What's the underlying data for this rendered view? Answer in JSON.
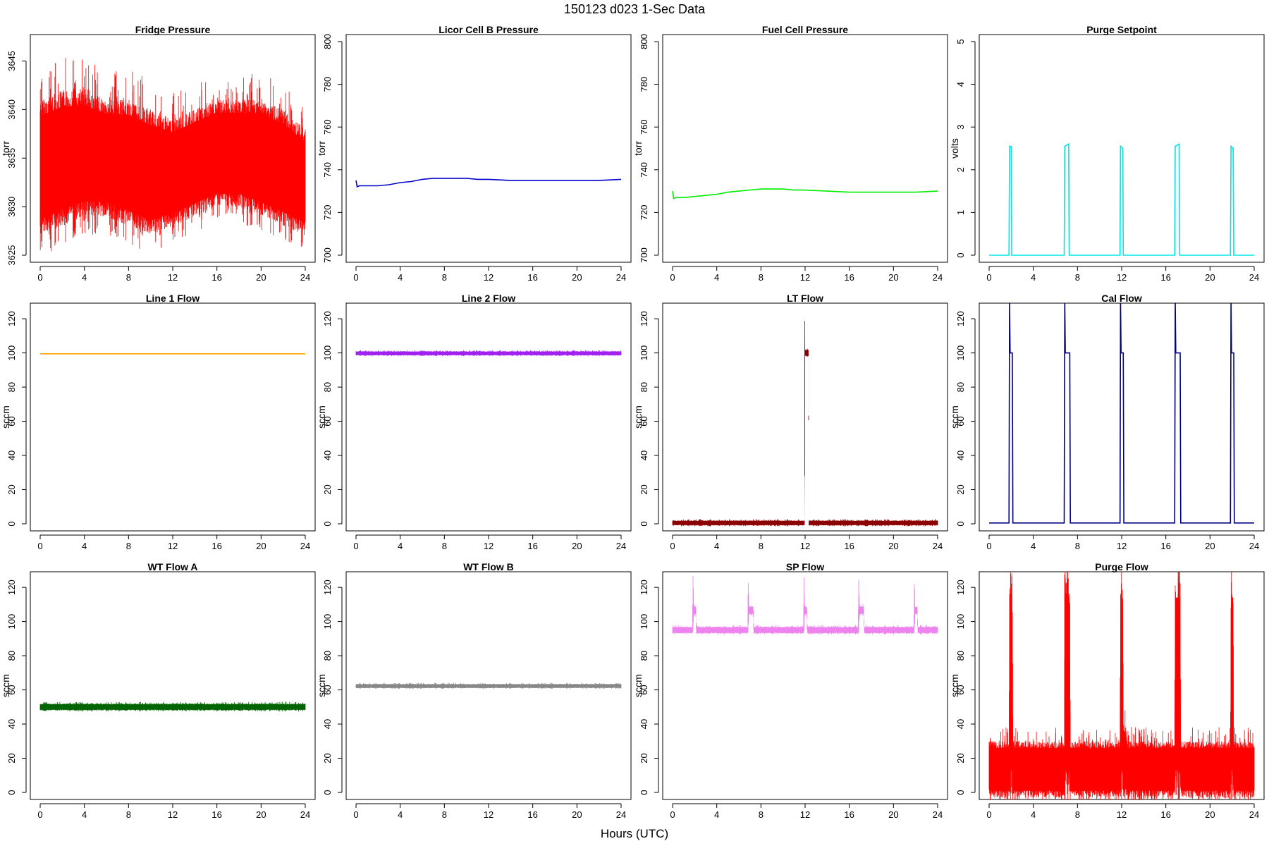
{
  "figure": {
    "title": "150123   d023   1-Sec Data",
    "xlabel": "Hours (UTC)"
  },
  "chart_data": [
    {
      "type": "line",
      "title": "Fridge Pressure",
      "ylabel": "torr",
      "color": "#ff0000",
      "xlim": [
        0,
        24
      ],
      "ylim": [
        3625,
        3647
      ],
      "xticks": [
        0,
        4,
        8,
        12,
        16,
        20,
        24
      ],
      "yticks": [
        3625,
        3630,
        3635,
        3640,
        3645
      ],
      "render": "noise_band",
      "x": [
        0,
        2,
        4,
        6,
        8,
        10,
        12,
        14,
        16,
        18,
        20,
        22,
        24
      ],
      "upper": [
        3641,
        3642,
        3642,
        3641,
        3641,
        3640,
        3639,
        3640,
        3641,
        3641,
        3641,
        3640,
        3638
      ],
      "lower": [
        3627,
        3628,
        3629,
        3629,
        3628,
        3627,
        3628,
        3629,
        3630,
        3630,
        3629,
        3628,
        3627
      ]
    },
    {
      "type": "line",
      "title": "Licor Cell B Pressure",
      "ylabel": "torr",
      "color": "#0000cc",
      "xlim": [
        0,
        24
      ],
      "ylim": [
        700,
        800
      ],
      "xticks": [
        0,
        4,
        8,
        12,
        16,
        20,
        24
      ],
      "yticks": [
        700,
        720,
        740,
        760,
        780,
        800
      ],
      "render": "line",
      "x": [
        0,
        0.1,
        0.3,
        1,
        2,
        3,
        4,
        5,
        6,
        7,
        8,
        9,
        10,
        11,
        12,
        14,
        16,
        18,
        20,
        22,
        24
      ],
      "y": [
        735,
        732,
        732.5,
        732.5,
        732.5,
        733,
        734,
        734.5,
        735.5,
        736,
        736,
        736,
        736,
        735.5,
        735.5,
        735,
        735,
        735,
        735,
        735,
        735.5
      ]
    },
    {
      "type": "line",
      "title": "Fuel Cell Pressure",
      "ylabel": "torr",
      "color": "#00ee00",
      "xlim": [
        0,
        24
      ],
      "ylim": [
        700,
        800
      ],
      "xticks": [
        0,
        4,
        8,
        12,
        16,
        20,
        24
      ],
      "yticks": [
        700,
        720,
        740,
        760,
        780,
        800
      ],
      "render": "line",
      "x": [
        0,
        0.1,
        0.3,
        1,
        2,
        3,
        4,
        5,
        6,
        7,
        8,
        9,
        10,
        11,
        12,
        14,
        16,
        18,
        20,
        22,
        24
      ],
      "y": [
        730,
        726.5,
        727,
        727,
        727.5,
        728,
        728.5,
        729.5,
        730,
        730.5,
        731,
        731,
        731,
        730.5,
        730.5,
        730,
        729.5,
        729.5,
        729.5,
        729.5,
        730
      ]
    },
    {
      "type": "line",
      "title": "Purge Setpoint",
      "ylabel": "volts",
      "color": "#00e5e5",
      "xlim": [
        0,
        24
      ],
      "ylim": [
        0,
        5
      ],
      "xticks": [
        0,
        4,
        8,
        12,
        16,
        20,
        24
      ],
      "yticks": [
        0,
        1,
        2,
        3,
        4,
        5
      ],
      "render": "line",
      "x": [
        0,
        1.8,
        1.85,
        2.0,
        2.05,
        6.8,
        6.85,
        7.2,
        7.25,
        11.85,
        11.9,
        12.1,
        12.15,
        16.8,
        16.85,
        17.2,
        17.25,
        21.85,
        21.9,
        22.1,
        22.15,
        24
      ],
      "y": [
        0,
        0,
        2.55,
        2.55,
        0,
        0,
        2.55,
        2.6,
        0,
        0,
        2.55,
        2.5,
        0,
        0,
        2.55,
        2.6,
        0,
        0,
        2.55,
        2.5,
        0,
        0
      ]
    },
    {
      "type": "line",
      "title": "Line 1 Flow",
      "ylabel": "sccm",
      "color": "#ffa500",
      "xlim": [
        0,
        24
      ],
      "ylim": [
        0,
        125
      ],
      "xticks": [
        0,
        4,
        8,
        12,
        16,
        20,
        24
      ],
      "yticks": [
        0,
        20,
        40,
        60,
        80,
        100,
        120
      ],
      "render": "line",
      "x": [
        0,
        24
      ],
      "y": [
        99.5,
        99.5
      ]
    },
    {
      "type": "line",
      "title": "Line 2 Flow",
      "ylabel": "sccm",
      "color": "#a020f0",
      "xlim": [
        0,
        24
      ],
      "ylim": [
        0,
        125
      ],
      "xticks": [
        0,
        4,
        8,
        12,
        16,
        20,
        24
      ],
      "yticks": [
        0,
        20,
        40,
        60,
        80,
        100,
        120
      ],
      "render": "noise_band",
      "x": [
        0,
        24
      ],
      "upper": [
        101,
        101
      ],
      "lower": [
        98.5,
        98.5
      ]
    },
    {
      "type": "line",
      "title": "LT Flow",
      "ylabel": "sccm",
      "color": "#8b0000",
      "xlim": [
        0,
        24
      ],
      "ylim": [
        0,
        125
      ],
      "xticks": [
        0,
        4,
        8,
        12,
        16,
        20,
        24
      ],
      "yticks": [
        0,
        20,
        40,
        60,
        80,
        100,
        120
      ],
      "render": "noise_band",
      "x": [
        0,
        11.95,
        11.96,
        12.0,
        12.05,
        12.3,
        12.35,
        24
      ],
      "upper": [
        2,
        2,
        130,
        102,
        102,
        102,
        2,
        2
      ],
      "lower": [
        -1,
        -1,
        -1,
        98,
        98,
        98,
        -1,
        -1
      ]
    },
    {
      "type": "line",
      "title": "Cal Flow",
      "ylabel": "sccm",
      "color": "#000080",
      "xlim": [
        0,
        24
      ],
      "ylim": [
        0,
        125
      ],
      "xticks": [
        0,
        4,
        8,
        12,
        16,
        20,
        24
      ],
      "yticks": [
        0,
        20,
        40,
        60,
        80,
        100,
        120
      ],
      "render": "line",
      "x": [
        0,
        1.8,
        1.85,
        1.9,
        2.1,
        2.15,
        6.8,
        6.85,
        6.9,
        7.3,
        7.35,
        11.85,
        11.9,
        11.95,
        12.15,
        12.2,
        16.8,
        16.85,
        16.9,
        17.3,
        17.35,
        21.85,
        21.9,
        21.95,
        22.15,
        22.2,
        24
      ],
      "y": [
        0.5,
        0.5,
        130,
        100,
        100,
        0.5,
        0.5,
        130,
        100,
        100,
        0.5,
        0.5,
        130,
        100,
        100,
        0.5,
        0.5,
        130,
        100,
        100,
        0.5,
        0.5,
        130,
        100,
        100,
        0.5,
        0.5
      ]
    },
    {
      "type": "line",
      "title": "WT Flow A",
      "ylabel": "sccm",
      "color": "#006400",
      "xlim": [
        0,
        24
      ],
      "ylim": [
        0,
        125
      ],
      "xticks": [
        0,
        4,
        8,
        12,
        16,
        20,
        24
      ],
      "yticks": [
        0,
        20,
        40,
        60,
        80,
        100,
        120
      ],
      "render": "noise_band",
      "x": [
        0,
        24
      ],
      "upper": [
        52,
        52
      ],
      "lower": [
        48,
        48
      ]
    },
    {
      "type": "line",
      "title": "WT Flow B",
      "ylabel": "sccm",
      "color": "#888888",
      "xlim": [
        0,
        24
      ],
      "ylim": [
        0,
        125
      ],
      "xticks": [
        0,
        4,
        8,
        12,
        16,
        20,
        24
      ],
      "yticks": [
        0,
        20,
        40,
        60,
        80,
        100,
        120
      ],
      "render": "noise_band",
      "x": [
        0,
        24
      ],
      "upper": [
        63.5,
        63.5
      ],
      "lower": [
        61,
        61
      ]
    },
    {
      "type": "line",
      "title": "SP Flow",
      "ylabel": "sccm",
      "color": "#ee82ee",
      "xlim": [
        0,
        24
      ],
      "ylim": [
        0,
        125
      ],
      "xticks": [
        0,
        4,
        8,
        12,
        16,
        20,
        24
      ],
      "yticks": [
        0,
        20,
        40,
        60,
        80,
        100,
        120
      ],
      "render": "noise_band",
      "x": [
        0,
        1.8,
        1.85,
        1.9,
        2.1,
        2.15,
        6.8,
        6.85,
        6.9,
        7.3,
        7.35,
        11.85,
        11.9,
        11.95,
        12.15,
        12.2,
        16.8,
        16.85,
        16.9,
        17.3,
        17.35,
        21.85,
        21.9,
        21.95,
        22.15,
        22.2,
        24
      ],
      "upper": [
        97,
        97,
        130,
        109,
        109,
        97,
        97,
        130,
        109,
        109,
        97,
        97,
        130,
        109,
        109,
        97,
        97,
        130,
        109,
        109,
        97,
        97,
        130,
        109,
        109,
        97,
        97
      ],
      "lower": [
        93,
        93,
        93,
        104,
        104,
        93,
        93,
        93,
        104,
        104,
        93,
        93,
        93,
        104,
        104,
        93,
        93,
        93,
        104,
        104,
        93,
        93,
        93,
        104,
        104,
        93,
        93
      ]
    },
    {
      "type": "line",
      "title": "Purge Flow",
      "ylabel": "sccm",
      "color": "#ff0000",
      "xlim": [
        0,
        24
      ],
      "ylim": [
        0,
        125
      ],
      "xticks": [
        0,
        4,
        8,
        12,
        16,
        20,
        24
      ],
      "yticks": [
        0,
        20,
        40,
        60,
        80,
        100,
        120
      ],
      "render": "noise_band",
      "x": [
        0,
        1.8,
        1.85,
        2.1,
        2.15,
        6.8,
        6.85,
        7.3,
        7.35,
        11.85,
        11.9,
        12.1,
        12.15,
        12.4,
        12.5,
        16.8,
        16.85,
        17.3,
        17.35,
        21.85,
        21.9,
        22.1,
        22.15,
        24
      ],
      "upper": [
        30,
        30,
        130,
        130,
        30,
        30,
        130,
        130,
        30,
        30,
        130,
        130,
        40,
        38,
        30,
        30,
        130,
        130,
        30,
        30,
        130,
        130,
        30,
        30
      ],
      "lower": [
        -3,
        -3,
        -3,
        -3,
        -3,
        -3,
        -3,
        -3,
        -3,
        -3,
        -3,
        -3,
        -3,
        -3,
        -3,
        -3,
        -3,
        -3,
        -3,
        -3,
        -3,
        -3,
        -3,
        -3
      ]
    }
  ]
}
